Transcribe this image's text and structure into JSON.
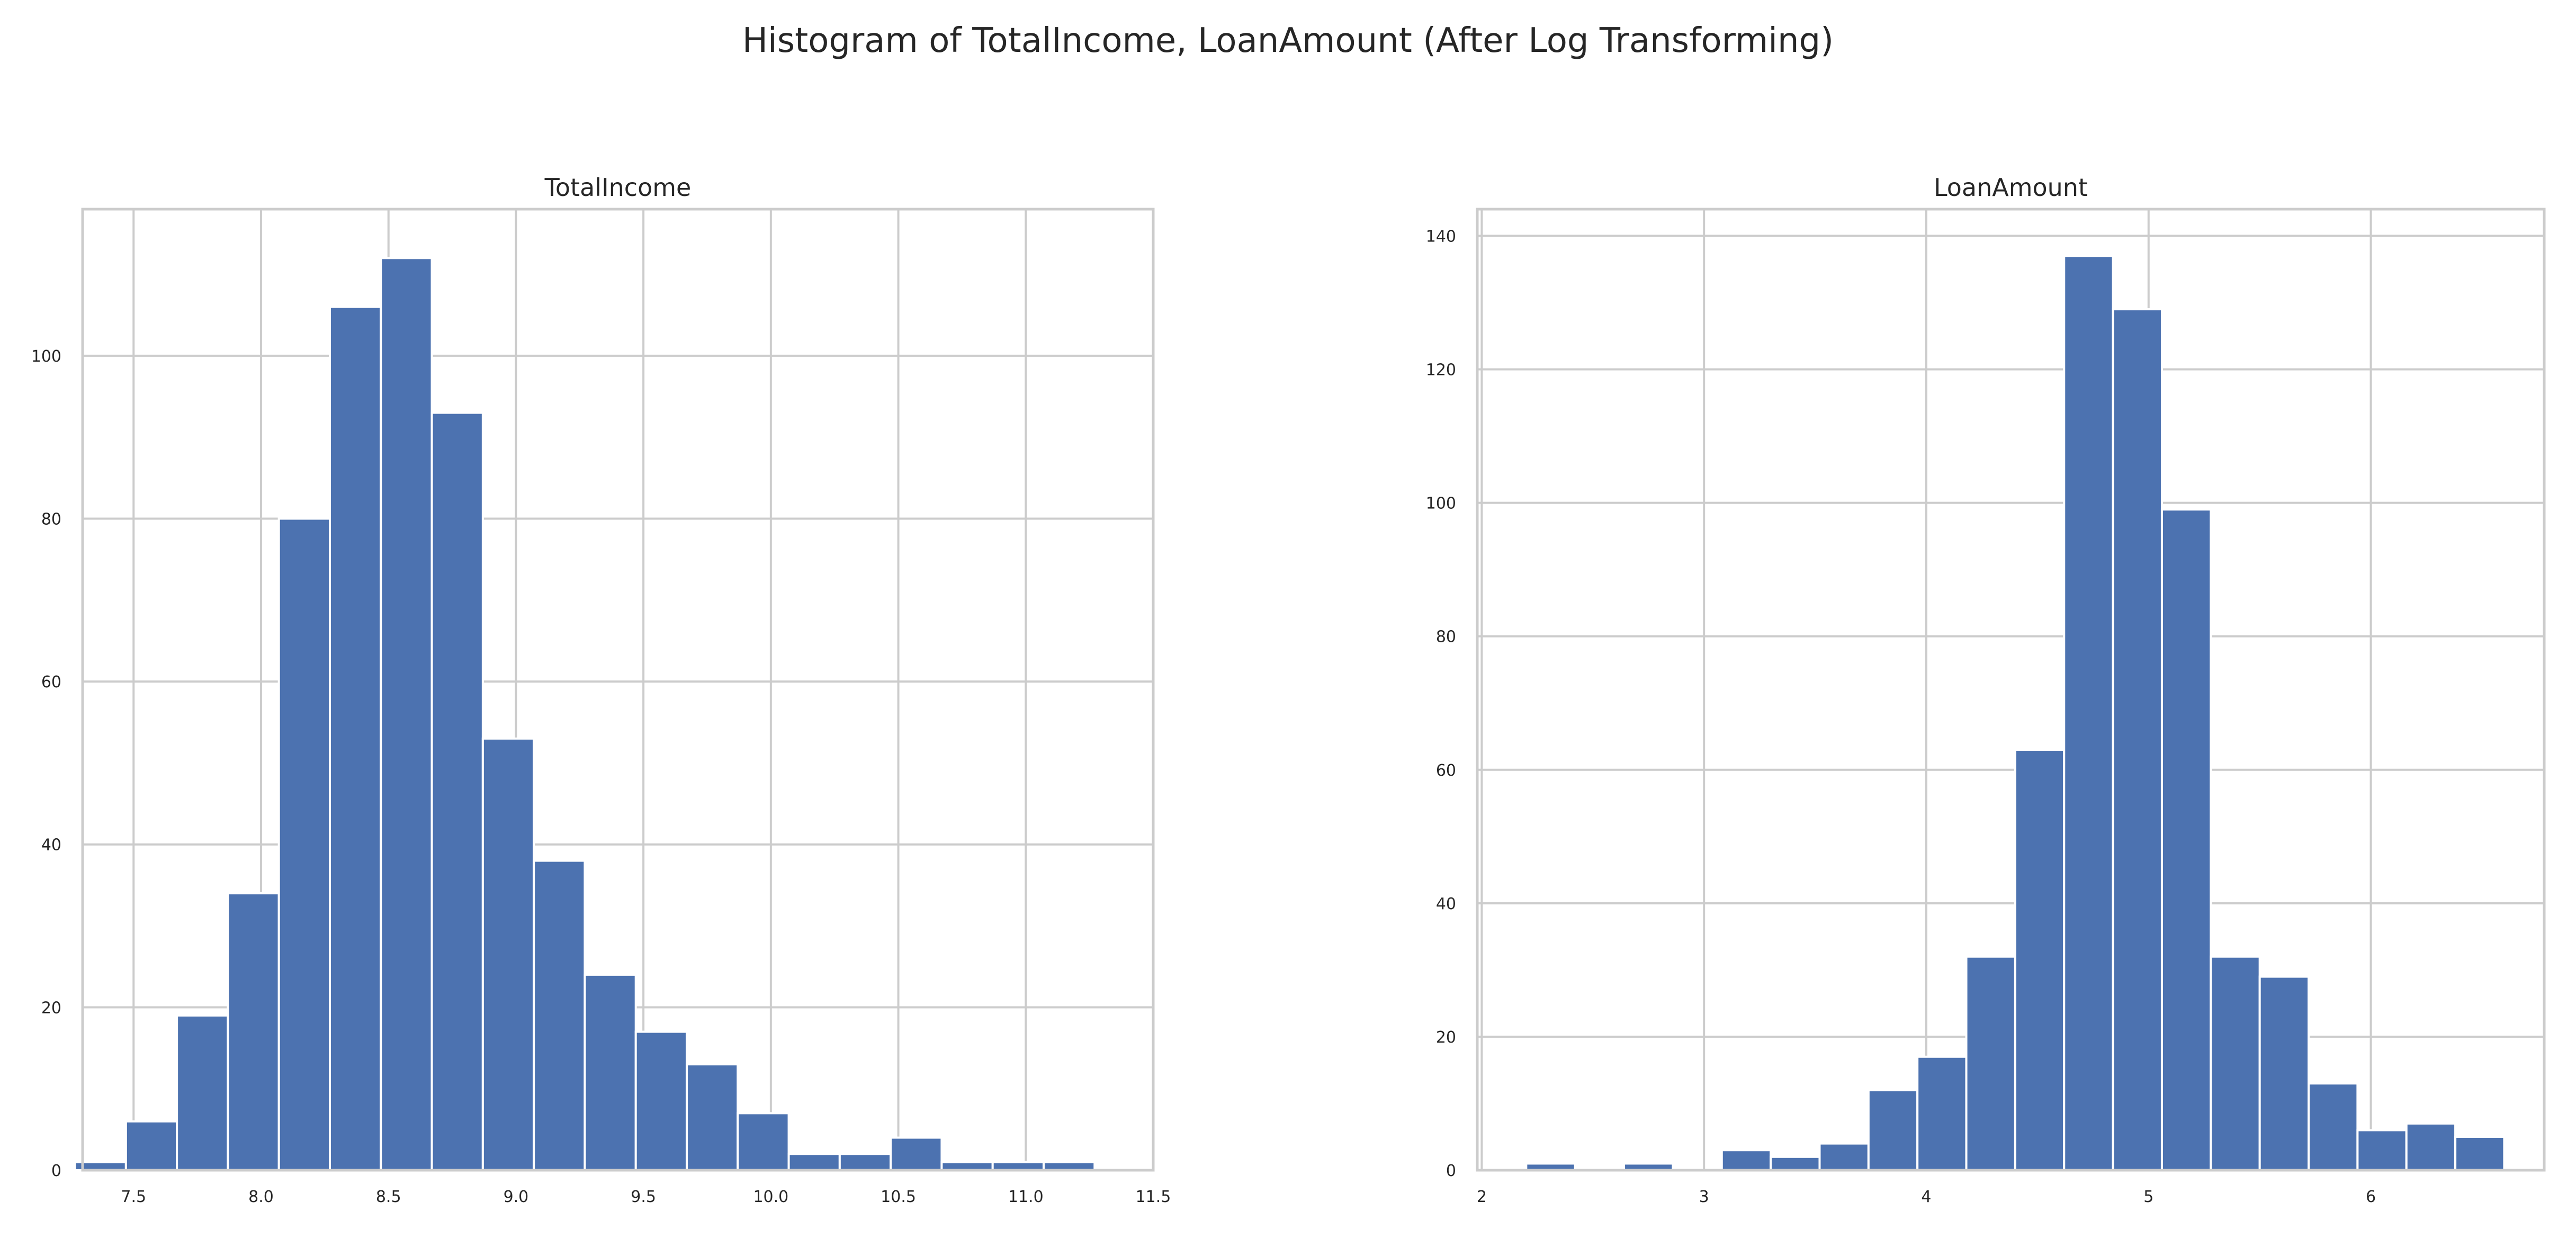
{
  "figure_title": "Histogram of TotalIncome, LoanAmount (After Log Transforming)",
  "chart_data": [
    {
      "type": "bar",
      "title": "TotalIncome",
      "xlabel": "",
      "ylabel": "",
      "grid": true,
      "color": "#4c72b0",
      "xlim": [
        7.3,
        11.5
      ],
      "ylim": [
        0,
        118
      ],
      "xticks": [
        7.5,
        8.0,
        8.5,
        9.0,
        9.5,
        10.0,
        10.5,
        11.0,
        11.5
      ],
      "xtick_labels": [
        "7.5",
        "8.0",
        "8.5",
        "9.0",
        "9.5",
        "10.0",
        "10.5",
        "11.0",
        "11.5"
      ],
      "yticks": [
        0,
        20,
        40,
        60,
        80,
        100
      ],
      "ytick_labels": [
        "0",
        "20",
        "40",
        "60",
        "80",
        "100"
      ],
      "bin_edges": [
        7.27,
        7.47,
        7.67,
        7.87,
        8.07,
        8.27,
        8.47,
        8.67,
        8.87,
        9.07,
        9.27,
        9.47,
        9.67,
        9.87,
        10.07,
        10.27,
        10.47,
        10.67,
        10.87,
        11.07,
        11.27
      ],
      "values": [
        1,
        6,
        19,
        34,
        80,
        106,
        112,
        93,
        53,
        38,
        24,
        17,
        13,
        7,
        2,
        2,
        4,
        1,
        1,
        1
      ]
    },
    {
      "type": "bar",
      "title": "LoanAmount",
      "xlabel": "",
      "ylabel": "",
      "grid": true,
      "color": "#4c72b0",
      "xlim": [
        1.98,
        6.78
      ],
      "ylim": [
        0,
        144
      ],
      "xticks": [
        2,
        3,
        4,
        5,
        6
      ],
      "xtick_labels": [
        "2",
        "3",
        "4",
        "5",
        "6"
      ],
      "yticks": [
        0,
        20,
        40,
        60,
        80,
        100,
        120,
        140
      ],
      "ytick_labels": [
        "0",
        "20",
        "40",
        "60",
        "80",
        "100",
        "120",
        "140"
      ],
      "bin_edges": [
        2.2,
        2.42,
        2.64,
        2.86,
        3.08,
        3.3,
        3.52,
        3.74,
        3.96,
        4.18,
        4.4,
        4.62,
        4.84,
        5.06,
        5.28,
        5.5,
        5.72,
        5.94,
        6.16,
        6.38,
        6.6
      ],
      "values": [
        1,
        0,
        1,
        0,
        3,
        2,
        4,
        12,
        17,
        32,
        63,
        137,
        129,
        99,
        32,
        29,
        13,
        6,
        7,
        5
      ]
    }
  ]
}
